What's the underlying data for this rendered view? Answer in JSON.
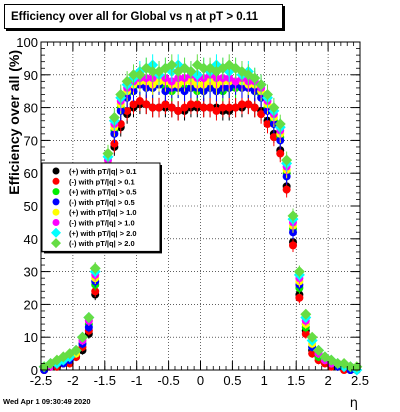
{
  "title": "Efficiency over all for Global vs   η at pT > 0.11",
  "footer_date": "Wed Apr  1 09:30:49 2020",
  "chart_data": {
    "type": "scatter",
    "title": "Efficiency over all for Global vs   η at pT > 0.11",
    "xlabel": "η",
    "ylabel": "Efficiency over all (%)",
    "xlim": [
      -2.5,
      2.5
    ],
    "ylim": [
      0,
      100
    ],
    "x_ticks": [
      "-2.5",
      "-2",
      "-1.5",
      "-1",
      "-0.5",
      "0",
      "0.5",
      "1",
      "1.5",
      "2",
      "2.5"
    ],
    "y_ticks": [
      "0",
      "10",
      "20",
      "30",
      "40",
      "50",
      "60",
      "70",
      "80",
      "90",
      "100"
    ],
    "grid": true,
    "legend_position": "middle-left",
    "x": [
      -2.45,
      -2.35,
      -2.25,
      -2.15,
      -2.05,
      -1.95,
      -1.85,
      -1.75,
      -1.65,
      -1.55,
      -1.45,
      -1.35,
      -1.25,
      -1.15,
      -1.05,
      -0.95,
      -0.85,
      -0.75,
      -0.65,
      -0.55,
      -0.45,
      -0.35,
      -0.25,
      -0.15,
      -0.05,
      0.05,
      0.15,
      0.25,
      0.35,
      0.45,
      0.55,
      0.65,
      0.75,
      0.85,
      0.95,
      1.05,
      1.15,
      1.25,
      1.35,
      1.45,
      1.55,
      1.65,
      1.75,
      1.85,
      1.95,
      2.05,
      2.15,
      2.25,
      2.35,
      2.45
    ],
    "series": [
      {
        "name": "(+) with pT/|q| > 0.1",
        "color": "#000000",
        "marker": "circle",
        "values": [
          0,
          1,
          1,
          2,
          3,
          4,
          6,
          11,
          23,
          38,
          57,
          68,
          74,
          78,
          80,
          81,
          81,
          80,
          80,
          80,
          80,
          79,
          79,
          80,
          80,
          80,
          80,
          80,
          79,
          79,
          80,
          80,
          81,
          80,
          79,
          76,
          72,
          67,
          56,
          39,
          23,
          12,
          6,
          4,
          3,
          2,
          1,
          1,
          0,
          0
        ]
      },
      {
        "name": "(-) with pT/|q| > 0.1",
        "color": "#ff0000",
        "marker": "circle",
        "values": [
          0,
          1,
          1,
          2,
          2,
          4,
          7,
          12,
          24,
          40,
          58,
          69,
          75,
          79,
          81,
          82,
          81,
          80,
          80,
          81,
          80,
          79,
          80,
          81,
          81,
          80,
          80,
          79,
          80,
          80,
          80,
          81,
          81,
          80,
          78,
          75,
          71,
          66,
          55,
          38,
          22,
          11,
          5,
          3,
          2,
          1,
          1,
          0,
          1,
          0
        ]
      },
      {
        "name": "(+) with pT/|q| > 0.5",
        "color": "#00ee00",
        "marker": "circle",
        "values": [
          1,
          1,
          2,
          3,
          3,
          5,
          8,
          14,
          26,
          43,
          62,
          73,
          80,
          84,
          86,
          87,
          87,
          86,
          87,
          86,
          85,
          86,
          86,
          86,
          85,
          86,
          86,
          86,
          85,
          86,
          86,
          87,
          86,
          86,
          84,
          80,
          76,
          71,
          60,
          43,
          25,
          13,
          7,
          4,
          3,
          2,
          1,
          1,
          1,
          0
        ]
      },
      {
        "name": "(-) with pT/|q| > 0.5",
        "color": "#0000ff",
        "marker": "circle",
        "values": [
          0,
          1,
          2,
          2,
          3,
          5,
          8,
          13,
          27,
          44,
          61,
          72,
          79,
          83,
          85,
          87,
          86,
          86,
          87,
          85,
          86,
          86,
          85,
          86,
          86,
          85,
          86,
          85,
          86,
          86,
          87,
          86,
          86,
          85,
          83,
          79,
          75,
          70,
          59,
          42,
          26,
          14,
          7,
          5,
          3,
          2,
          1,
          1,
          0,
          0
        ]
      },
      {
        "name": "(+) with pT/|q| > 1.0",
        "color": "#ffff00",
        "marker": "circle",
        "values": [
          1,
          1,
          2,
          3,
          4,
          5,
          9,
          15,
          28,
          45,
          63,
          74,
          81,
          85,
          87,
          88,
          88,
          87,
          88,
          88,
          87,
          87,
          88,
          88,
          87,
          87,
          88,
          87,
          88,
          88,
          88,
          88,
          87,
          87,
          85,
          81,
          77,
          72,
          61,
          44,
          27,
          14,
          8,
          5,
          3,
          2,
          2,
          1,
          1,
          0
        ]
      },
      {
        "name": "(-) with pT/|q| > 1.0",
        "color": "#ff00ff",
        "marker": "circle",
        "values": [
          1,
          1,
          2,
          3,
          4,
          6,
          9,
          15,
          29,
          46,
          64,
          75,
          82,
          86,
          88,
          89,
          89,
          89,
          90,
          89,
          88,
          89,
          89,
          90,
          89,
          89,
          90,
          89,
          89,
          89,
          88,
          89,
          88,
          88,
          86,
          82,
          78,
          73,
          62,
          45,
          28,
          15,
          9,
          5,
          3,
          2,
          2,
          1,
          1,
          0
        ]
      },
      {
        "name": "(+) with pT/|q| > 2.0",
        "color": "#00ffff",
        "marker": "diamond",
        "values": [
          1,
          2,
          2,
          3,
          4,
          6,
          10,
          16,
          30,
          47,
          65,
          76,
          83,
          87,
          89,
          91,
          92,
          93,
          90,
          92,
          91,
          93,
          92,
          91,
          90,
          92,
          91,
          93,
          92,
          91,
          92,
          90,
          91,
          89,
          87,
          83,
          79,
          74,
          63,
          46,
          29,
          16,
          9,
          6,
          4,
          3,
          2,
          1,
          1,
          0
        ]
      },
      {
        "name": "(-) with pT/|q| > 2.0",
        "color": "#66dd44",
        "marker": "diamond",
        "values": [
          1,
          2,
          3,
          4,
          5,
          6,
          10,
          16,
          31,
          48,
          66,
          77,
          84,
          88,
          90,
          90,
          92,
          91,
          91,
          92,
          93,
          91,
          92,
          91,
          93,
          92,
          92,
          91,
          92,
          93,
          92,
          91,
          90,
          89,
          87,
          84,
          80,
          75,
          64,
          47,
          30,
          17,
          10,
          6,
          4,
          3,
          2,
          2,
          1,
          1
        ]
      }
    ]
  }
}
